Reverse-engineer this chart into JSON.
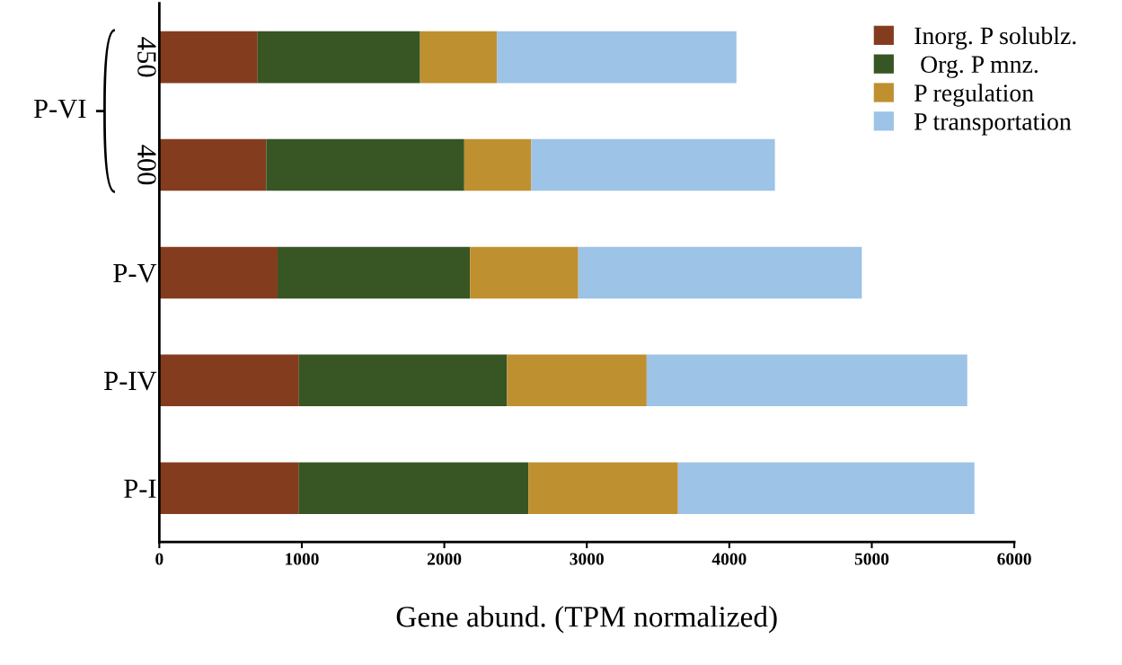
{
  "chart_data": {
    "type": "bar",
    "orientation": "horizontal",
    "stacked": true,
    "xlabel": "Gene abund. (TPM normalized)",
    "categories": [
      "450",
      "400",
      "P-V",
      "P-IV",
      "P-I"
    ],
    "series": [
      {
        "name": "Inorg. P solublz.",
        "color": "#843c1f",
        "values": [
          690,
          750,
          830,
          980,
          980
        ]
      },
      {
        "name": " Org. P mnz.",
        "color": "#375623",
        "values": [
          1140,
          1390,
          1350,
          1460,
          1610
        ]
      },
      {
        "name": "P regulation",
        "color": "#bf9030",
        "values": [
          540,
          470,
          760,
          980,
          1050
        ]
      },
      {
        "name": "P transportation",
        "color": "#9dc3e6",
        "values": [
          1680,
          1710,
          1990,
          2250,
          2080
        ]
      }
    ],
    "xlim": [
      0,
      6000
    ],
    "xticks": [
      0,
      1000,
      2000,
      3000,
      4000,
      5000,
      6000
    ],
    "annotations": [
      "P-VI"
    ],
    "grid": false,
    "legend": "top right"
  }
}
